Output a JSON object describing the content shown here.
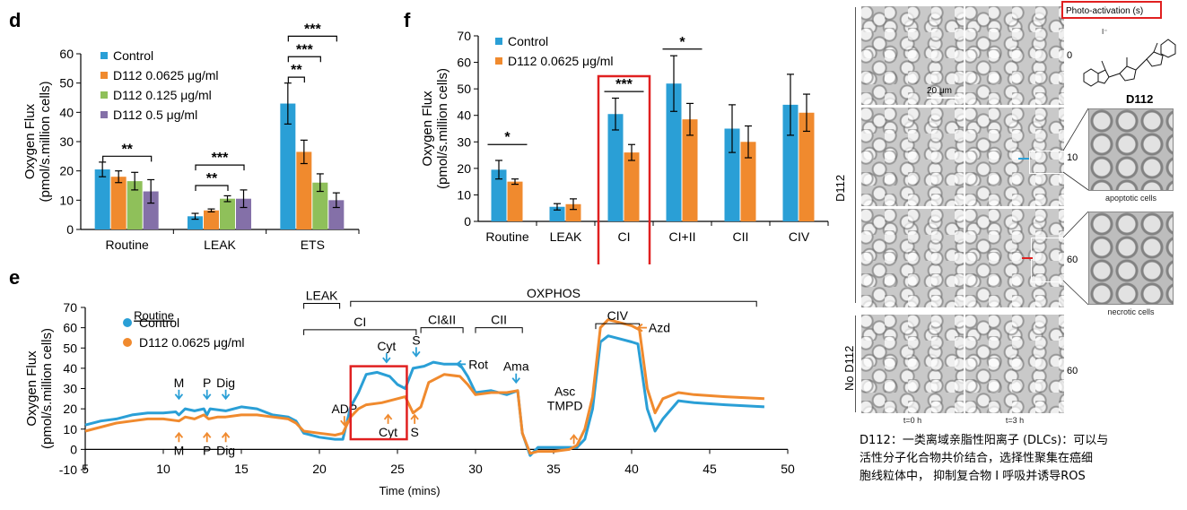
{
  "panel_letters": {
    "d": "d",
    "e": "e",
    "f": "f"
  },
  "chart_data": [
    {
      "id": "d",
      "type": "bar",
      "ylabel": "Oxygen Flux\n(pmol/s.million cells)",
      "ylabel_line1": "Oxygen Flux",
      "ylabel_line2": "(pmol/s.million cells)",
      "ylim": [
        0,
        60
      ],
      "yticks": [
        0,
        10,
        20,
        30,
        40,
        50,
        60
      ],
      "categories": [
        "Routine",
        "LEAK",
        "ETS"
      ],
      "series": [
        {
          "name": "Control",
          "color": "#2a9fd6",
          "values": [
            20.5,
            4.5,
            43
          ],
          "errors": [
            2.5,
            1,
            7
          ]
        },
        {
          "name": "D112 0.0625 μg/ml",
          "color": "#f08a2e",
          "values": [
            18,
            6.5,
            26.5
          ],
          "errors": [
            2,
            0.5,
            4
          ]
        },
        {
          "name": "D112 0.125 μg/ml",
          "color": "#8fc05a",
          "values": [
            16.5,
            10.5,
            16
          ],
          "errors": [
            3,
            1,
            3
          ]
        },
        {
          "name": "D112 0.5 μg/ml",
          "color": "#8470a8",
          "values": [
            13,
            10.5,
            10
          ],
          "errors": [
            4,
            3,
            2.5
          ]
        }
      ],
      "annotations": [
        {
          "text": "**",
          "group": 0,
          "from": 0,
          "to": 3,
          "y": 25
        },
        {
          "text": "**",
          "group": 1,
          "from": 0,
          "to": 2,
          "y": 15
        },
        {
          "text": "***",
          "group": 1,
          "from": 0,
          "to": 3,
          "y": 22
        },
        {
          "text": "**",
          "group": 2,
          "from": 0,
          "to": 1,
          "y": 52
        },
        {
          "text": "***",
          "group": 2,
          "from": 0,
          "to": 2,
          "y": 59
        },
        {
          "text": "***",
          "group": 2,
          "from": 0,
          "to": 3,
          "y": 66
        }
      ]
    },
    {
      "id": "f",
      "type": "bar",
      "ylabel_line1": "Oxygen Flux",
      "ylabel_line2": "(pmol/s.million cells)",
      "ylim": [
        0,
        70
      ],
      "yticks": [
        0,
        10,
        20,
        30,
        40,
        50,
        60,
        70
      ],
      "categories": [
        "Routine",
        "LEAK",
        "CI",
        "CI+II",
        "CII",
        "CIV"
      ],
      "series": [
        {
          "name": "Control",
          "color": "#2a9fd6",
          "values": [
            19.5,
            5.5,
            40.5,
            52,
            35,
            44
          ],
          "errors": [
            3.5,
            1.2,
            6,
            10.5,
            9,
            11.5
          ]
        },
        {
          "name": "D112 0.0625 μg/ml",
          "color": "#f08a2e",
          "values": [
            15,
            6.5,
            26,
            38.5,
            30,
            41
          ],
          "errors": [
            1,
            2,
            3,
            6,
            6,
            7
          ]
        }
      ],
      "annotations": [
        {
          "text": "*",
          "group": 0,
          "y": 29
        },
        {
          "text": "***",
          "group": 2,
          "y": 49
        },
        {
          "text": "*",
          "group": 3,
          "y": 65
        }
      ],
      "highlight_group": 2
    },
    {
      "id": "e",
      "type": "line",
      "xlabel": "Time (mins)",
      "ylabel_line1": "Oxygen Flux",
      "ylabel_line2": "(pmol/s.million cells)",
      "xlim": [
        5,
        50
      ],
      "ylim": [
        -10,
        70
      ],
      "xticks": [
        5,
        10,
        15,
        20,
        25,
        30,
        35,
        40,
        45,
        50
      ],
      "yticks": [
        -10,
        0,
        10,
        20,
        30,
        40,
        50,
        60,
        70
      ],
      "series": [
        {
          "name": "Control",
          "color": "#2a9fd6",
          "points": [
            [
              5,
              12
            ],
            [
              6,
              14
            ],
            [
              7,
              15
            ],
            [
              8,
              17
            ],
            [
              9,
              18
            ],
            [
              10,
              18
            ],
            [
              10.8,
              18.5
            ],
            [
              11,
              17
            ],
            [
              11.4,
              20
            ],
            [
              12,
              19
            ],
            [
              12.6,
              20
            ],
            [
              12.8,
              17
            ],
            [
              13,
              20
            ],
            [
              14,
              19
            ],
            [
              15,
              21
            ],
            [
              16,
              20
            ],
            [
              17,
              17
            ],
            [
              18,
              16
            ],
            [
              18.5,
              14
            ],
            [
              19,
              8
            ],
            [
              20,
              6
            ],
            [
              21,
              5
            ],
            [
              21.5,
              5
            ],
            [
              22,
              21
            ],
            [
              22.5,
              28
            ],
            [
              23,
              37
            ],
            [
              23.7,
              38
            ],
            [
              24.5,
              36
            ],
            [
              25,
              32
            ],
            [
              25.5,
              30
            ],
            [
              26,
              40
            ],
            [
              26.7,
              41
            ],
            [
              27.3,
              43
            ],
            [
              28,
              42
            ],
            [
              29,
              42
            ],
            [
              29.5,
              36
            ],
            [
              30,
              28
            ],
            [
              31,
              29
            ],
            [
              32,
              27
            ],
            [
              32.7,
              29
            ],
            [
              33,
              8
            ],
            [
              33.5,
              -3
            ],
            [
              34,
              1
            ],
            [
              35,
              1
            ],
            [
              36,
              1
            ],
            [
              36.5,
              1
            ],
            [
              37,
              5
            ],
            [
              37.5,
              20
            ],
            [
              38,
              53
            ],
            [
              38.5,
              56
            ],
            [
              39,
              55
            ],
            [
              40,
              53
            ],
            [
              40.4,
              52
            ],
            [
              41,
              20
            ],
            [
              41.5,
              9
            ],
            [
              42,
              15
            ],
            [
              43,
              24
            ],
            [
              44,
              23
            ],
            [
              46,
              22
            ],
            [
              48.5,
              21
            ]
          ]
        },
        {
          "name": "D112 0.0625 μg/ml",
          "color": "#f08a2e",
          "points": [
            [
              5,
              9
            ],
            [
              6,
              11
            ],
            [
              7,
              13
            ],
            [
              8,
              14
            ],
            [
              9,
              15
            ],
            [
              10,
              15
            ],
            [
              11,
              14
            ],
            [
              11.4,
              16
            ],
            [
              12,
              15
            ],
            [
              12.6,
              17
            ],
            [
              12.9,
              15
            ],
            [
              13.5,
              16
            ],
            [
              14,
              16
            ],
            [
              15,
              17
            ],
            [
              16,
              17
            ],
            [
              17,
              16
            ],
            [
              18,
              15
            ],
            [
              18.5,
              13
            ],
            [
              19,
              9
            ],
            [
              20,
              8
            ],
            [
              21,
              7
            ],
            [
              21.5,
              8
            ],
            [
              22,
              16
            ],
            [
              22.5,
              20
            ],
            [
              23,
              22
            ],
            [
              24,
              23
            ],
            [
              25,
              25
            ],
            [
              25.5,
              26
            ],
            [
              26,
              18
            ],
            [
              26.5,
              21
            ],
            [
              27,
              33
            ],
            [
              27.5,
              35
            ],
            [
              28,
              37
            ],
            [
              29,
              36
            ],
            [
              29.5,
              32
            ],
            [
              30,
              27
            ],
            [
              31,
              28
            ],
            [
              32,
              28
            ],
            [
              32.7,
              29
            ],
            [
              33,
              8
            ],
            [
              33.5,
              -2
            ],
            [
              34,
              -1
            ],
            [
              35,
              -1
            ],
            [
              36,
              0
            ],
            [
              36.5,
              2
            ],
            [
              37,
              10
            ],
            [
              37.5,
              26
            ],
            [
              38,
              60
            ],
            [
              38.5,
              64
            ],
            [
              39,
              63
            ],
            [
              40,
              61
            ],
            [
              40.5,
              59
            ],
            [
              41,
              30
            ],
            [
              41.5,
              18
            ],
            [
              42,
              25
            ],
            [
              43,
              28
            ],
            [
              44,
              27
            ],
            [
              46,
              26
            ],
            [
              48.5,
              25
            ]
          ]
        }
      ],
      "phases": [
        {
          "label": "Routine",
          "from": 8.3,
          "to": 10.5,
          "y": 64,
          "underline": true
        },
        {
          "label": "LEAK",
          "from": 19,
          "to": 21.3,
          "y": 72
        },
        {
          "label": "OXPHOS",
          "from": 22,
          "to": 48,
          "y": 73
        },
        {
          "label": "CI",
          "from": 19,
          "to": 26.2,
          "y": 59
        },
        {
          "label": "CI&II",
          "from": 26.5,
          "to": 29.2,
          "y": 60
        },
        {
          "label": "CII",
          "from": 30,
          "to": 33,
          "y": 60
        },
        {
          "label": "CIV",
          "from": 37.7,
          "to": 40.5,
          "y": 62
        }
      ],
      "markers": [
        {
          "label": "M",
          "x": 11,
          "y": 25,
          "color": "#2a9fd6",
          "dir": "down"
        },
        {
          "label": "P",
          "x": 12.8,
          "y": 25,
          "color": "#2a9fd6",
          "dir": "down"
        },
        {
          "label": "Dig",
          "x": 14,
          "y": 25,
          "color": "#2a9fd6",
          "dir": "down"
        },
        {
          "label": "M",
          "x": 11,
          "y": 8,
          "color": "#f08a2e",
          "dir": "up"
        },
        {
          "label": "P",
          "x": 12.8,
          "y": 8,
          "color": "#f08a2e",
          "dir": "up"
        },
        {
          "label": "Dig",
          "x": 14,
          "y": 8,
          "color": "#f08a2e",
          "dir": "up"
        },
        {
          "label": "ADP",
          "x": 21.6,
          "y": 12,
          "color": "#f08a2e",
          "dir": "down"
        },
        {
          "label": "Cyt",
          "x": 24.3,
          "y": 43,
          "color": "#2a9fd6",
          "dir": "down"
        },
        {
          "label": "S",
          "x": 26.2,
          "y": 46,
          "color": "#2a9fd6",
          "dir": "down"
        },
        {
          "label": "Cyt",
          "x": 24.4,
          "y": 17,
          "color": "#f08a2e",
          "dir": "up"
        },
        {
          "label": "S",
          "x": 26.1,
          "y": 17,
          "color": "#f08a2e",
          "dir": "up"
        },
        {
          "label": "Rot",
          "x": 28.8,
          "y": 42,
          "color": "#2a9fd6",
          "dir": "left"
        },
        {
          "label": "Ama",
          "x": 32.6,
          "y": 33,
          "color": "#2a9fd6",
          "dir": "down"
        },
        {
          "label": "Asc",
          "x": 36.3,
          "y": 7,
          "color": "#f08a2e",
          "dir": "up"
        },
        {
          "label": "TMPD",
          "x": 36.3,
          "y": 7,
          "color": "#f08a2e",
          "dir": "up"
        },
        {
          "label": "Azd",
          "x": 40.4,
          "y": 60,
          "color": "#f08a2e",
          "dir": "left"
        }
      ],
      "highlight": {
        "x0": 22,
        "x1": 25.6,
        "y0": 5,
        "y1": 41
      }
    }
  ],
  "micro": {
    "photo_activation_label": "Photo-activation (s)",
    "times": [
      "0",
      "10",
      "60",
      "60"
    ],
    "scalebar": "20 μm",
    "compound_name": "D112",
    "iodide": "I⁻",
    "zoom_labels": [
      "apoptotic cells",
      "necrotic cells"
    ],
    "row_labels": [
      "D112",
      "No D112"
    ],
    "col_labels": [
      "t=0 h",
      "t=3 h"
    ]
  },
  "caption": {
    "line1": "D112：一类离域亲脂性阳离子 (DLCs)：可以与",
    "line2": "活性分子化合物共价结合，选择性聚集在癌细",
    "line3": "胞线粒体中， 抑制复合物 I 呼吸并诱导ROS"
  }
}
